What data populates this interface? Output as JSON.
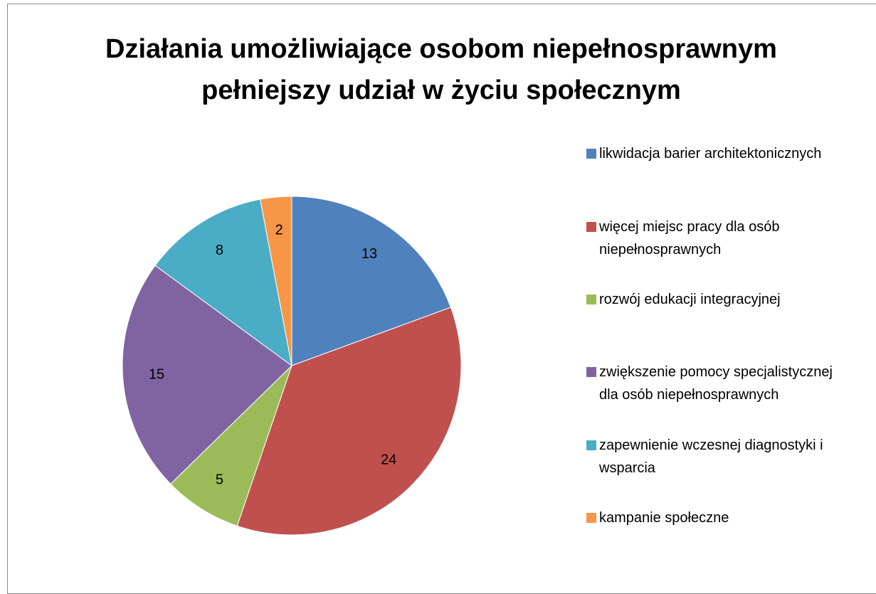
{
  "chart_data": {
    "type": "pie",
    "title": "Działania umożliwiające osobom niepełnosprawnym pełniejszy udział w życiu społecznym",
    "categories": [
      "likwidacja barier architektonicznych",
      "więcej miejsc pracy dla osób niepełnosprawnych",
      "rozwój edukacji integracyjnej",
      "zwiększenie pomocy specjalistycznej dla osób niepełnosprawnych",
      "zapewnienie wczesnej diagnostyki i wsparcia",
      "kampanie społeczne"
    ],
    "values": [
      13,
      24,
      5,
      15,
      8,
      2
    ],
    "colors": [
      "#4f81bd",
      "#c0504d",
      "#9bbb59",
      "#8064a2",
      "#4bacc6",
      "#f79646"
    ],
    "legend": "right"
  }
}
